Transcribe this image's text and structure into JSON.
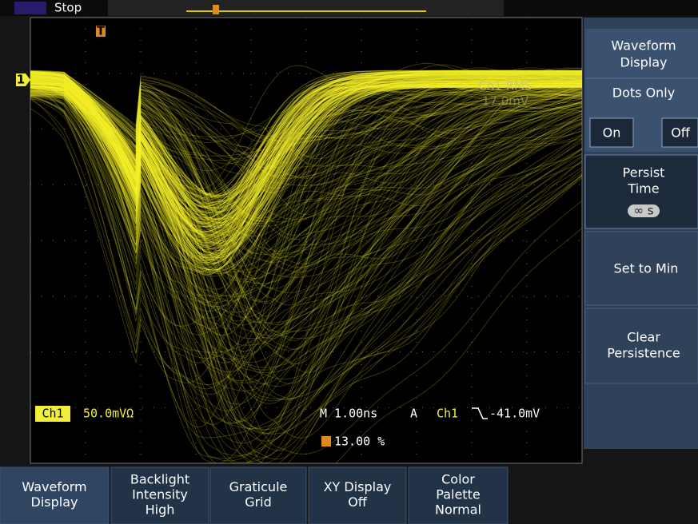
{
  "status": "Stop",
  "markers": {
    "trigger": "T",
    "channel": "1"
  },
  "side_menu": {
    "title": {
      "lines": [
        "Waveform",
        "Display"
      ]
    },
    "dots_only": {
      "label": "Dots Only",
      "options": [
        "On",
        "Off"
      ]
    },
    "persist_time": {
      "lines": [
        "Persist",
        "Time"
      ],
      "value": "∞ s"
    },
    "set_to_min": "Set to Min",
    "clear_persistence": {
      "lines": [
        "Clear",
        "Persistence"
      ]
    }
  },
  "measurement": {
    "label": "Ch1 RMS",
    "value": "17.0mV"
  },
  "readout": {
    "channel": "Ch1",
    "scale": "50.0mVΩ",
    "timebase": "M 1.00ns",
    "trigger_mode": "A",
    "trigger_source": "Ch1",
    "trigger_level": "-41.0mV",
    "trigger_position": "13.00 %"
  },
  "bottom_menu": [
    {
      "lines": [
        "Waveform",
        "Display"
      ]
    },
    {
      "lines": [
        "Backlight",
        "Intensity",
        "High"
      ]
    },
    {
      "lines": [
        "Graticule",
        "Grid"
      ]
    },
    {
      "lines": [
        "XY Display",
        "Off"
      ]
    },
    {
      "lines": [
        "Color",
        "Palette",
        "Normal"
      ]
    }
  ]
}
